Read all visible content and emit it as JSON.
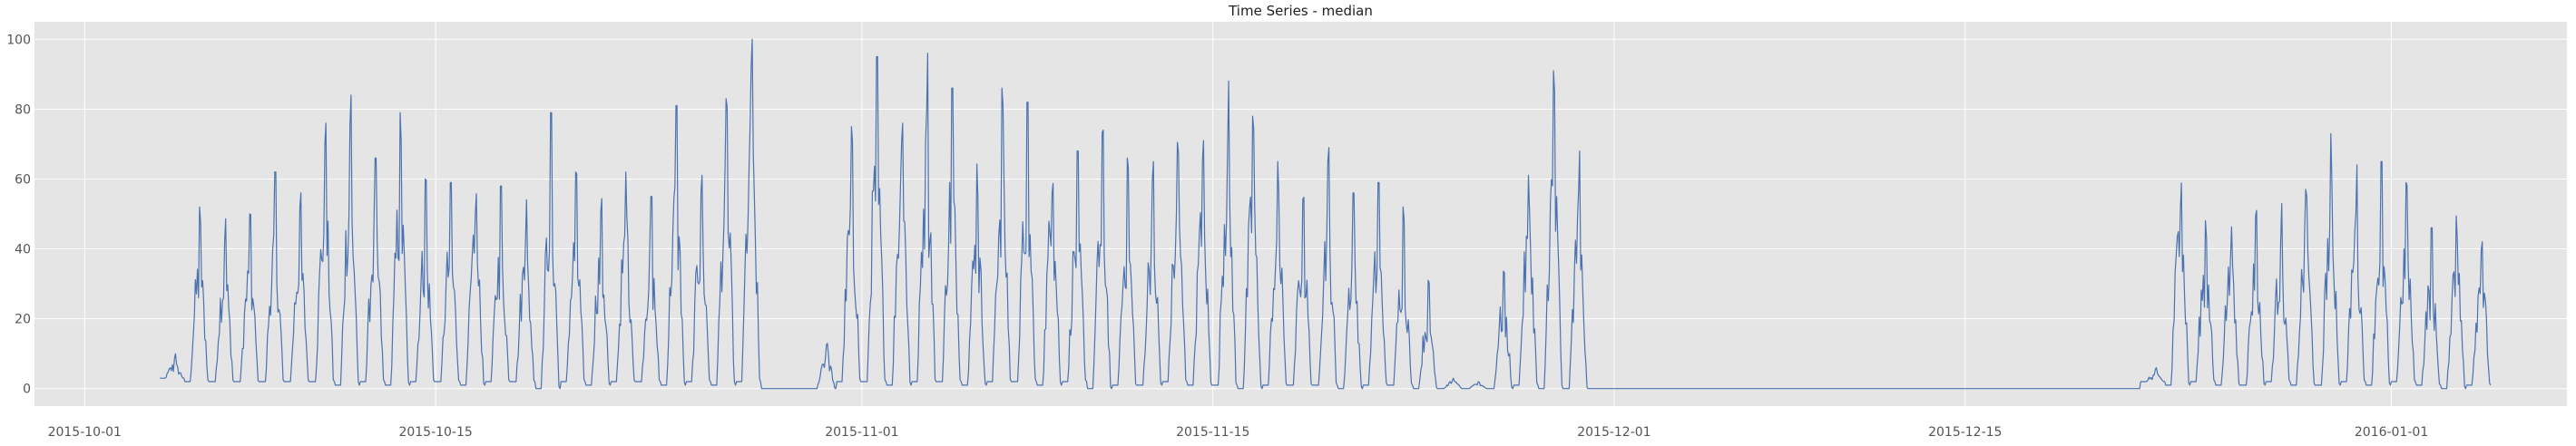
{
  "chart_data": {
    "type": "line",
    "title": "Time Series - median",
    "xlabel": "",
    "ylabel": "",
    "x_axis": {
      "type": "date",
      "range": [
        "2015-09-29",
        "2016-01-08"
      ],
      "ticks": [
        "2015-10-01",
        "2015-10-15",
        "2015-11-01",
        "2015-11-15",
        "2015-12-01",
        "2015-12-15",
        "2016-01-01"
      ]
    },
    "y_axis": {
      "range": [
        -5,
        105
      ],
      "ticks": [
        0,
        20,
        40,
        60,
        80,
        100
      ]
    },
    "grid": true,
    "legend": "none",
    "colors": {
      "line": "#4c72b0",
      "plot_background": "#e5e5e5",
      "grid": "#ffffff"
    },
    "series": [
      {
        "x": [
          "2015-10-04",
          "2015-10-05",
          "2015-10-06",
          "2015-10-07",
          "2015-10-08",
          "2015-10-09",
          "2015-10-10",
          "2015-10-11",
          "2015-10-12",
          "2015-10-13",
          "2015-10-14",
          "2015-10-15",
          "2015-10-16",
          "2015-10-17",
          "2015-10-18",
          "2015-10-19",
          "2015-10-20",
          "2015-10-21",
          "2015-10-22",
          "2015-10-23",
          "2015-10-24",
          "2015-10-25",
          "2015-10-26",
          "2015-10-27",
          "2015-10-28",
          "2015-10-29",
          "2015-10-30",
          "2015-10-31",
          "2015-11-01",
          "2015-11-02",
          "2015-11-03",
          "2015-11-04",
          "2015-11-05",
          "2015-11-06",
          "2015-11-07",
          "2015-11-08",
          "2015-11-09",
          "2015-11-10",
          "2015-11-11",
          "2015-11-12",
          "2015-11-13",
          "2015-11-14",
          "2015-11-15",
          "2015-11-16",
          "2015-11-17",
          "2015-11-18",
          "2015-11-19",
          "2015-11-20",
          "2015-11-21",
          "2015-11-22",
          "2015-11-23",
          "2015-11-24",
          "2015-11-25",
          "2015-11-26",
          "2015-11-27",
          "2015-11-28",
          "2015-11-29",
          "2015-11-30",
          "2015-12-01",
          "2015-12-02",
          "2015-12-03",
          "2015-12-04",
          "2015-12-05",
          "2015-12-06",
          "2015-12-07",
          "2015-12-08",
          "2015-12-09",
          "2015-12-10",
          "2015-12-11",
          "2015-12-12",
          "2015-12-13",
          "2015-12-14",
          "2015-12-15",
          "2015-12-16",
          "2015-12-17",
          "2015-12-18",
          "2015-12-19",
          "2015-12-20",
          "2015-12-21",
          "2015-12-22",
          "2015-12-23",
          "2015-12-24",
          "2015-12-25",
          "2015-12-26",
          "2015-12-27",
          "2015-12-28",
          "2015-12-29",
          "2015-12-30",
          "2015-12-31",
          "2016-01-01",
          "2016-01-02",
          "2016-01-03",
          "2016-01-04"
        ],
        "peak": [
          10,
          52,
          50,
          50,
          62,
          56,
          76,
          84,
          66,
          79,
          60,
          59,
          60,
          58,
          55,
          79,
          62,
          57,
          62,
          55,
          81,
          65,
          83,
          100,
          0,
          0,
          14,
          75,
          95,
          88,
          96,
          86,
          65,
          86,
          82,
          73,
          68,
          74,
          66,
          65,
          72,
          71,
          88,
          78,
          65,
          60,
          69,
          56,
          59,
          52,
          31,
          3,
          2,
          35,
          65,
          91,
          68,
          0,
          0,
          0,
          0,
          0,
          0,
          0,
          0,
          0,
          0,
          0,
          0,
          0,
          0,
          0,
          0,
          0,
          0,
          0,
          0,
          0,
          0,
          6,
          70,
          52,
          50,
          51,
          53,
          60,
          73,
          64,
          65,
          59,
          46,
          55,
          48
        ],
        "low": [
          3,
          2,
          2,
          2,
          2,
          2,
          2,
          1,
          2,
          1,
          2,
          2,
          1,
          2,
          2,
          0,
          2,
          1,
          2,
          2,
          1,
          2,
          1,
          2,
          0,
          0,
          0,
          2,
          2,
          1,
          2,
          2,
          1,
          2,
          2,
          1,
          2,
          0,
          1,
          1,
          2,
          1,
          1,
          0,
          1,
          1,
          1,
          0,
          1,
          1,
          0,
          0,
          0,
          0,
          1,
          0,
          0,
          0,
          0,
          0,
          0,
          0,
          0,
          0,
          0,
          0,
          0,
          0,
          0,
          0,
          0,
          0,
          0,
          0,
          0,
          0,
          0,
          0,
          0,
          2,
          1,
          2,
          1,
          1,
          2,
          1,
          1,
          2,
          1,
          2,
          1,
          0,
          1
        ]
      }
    ]
  }
}
